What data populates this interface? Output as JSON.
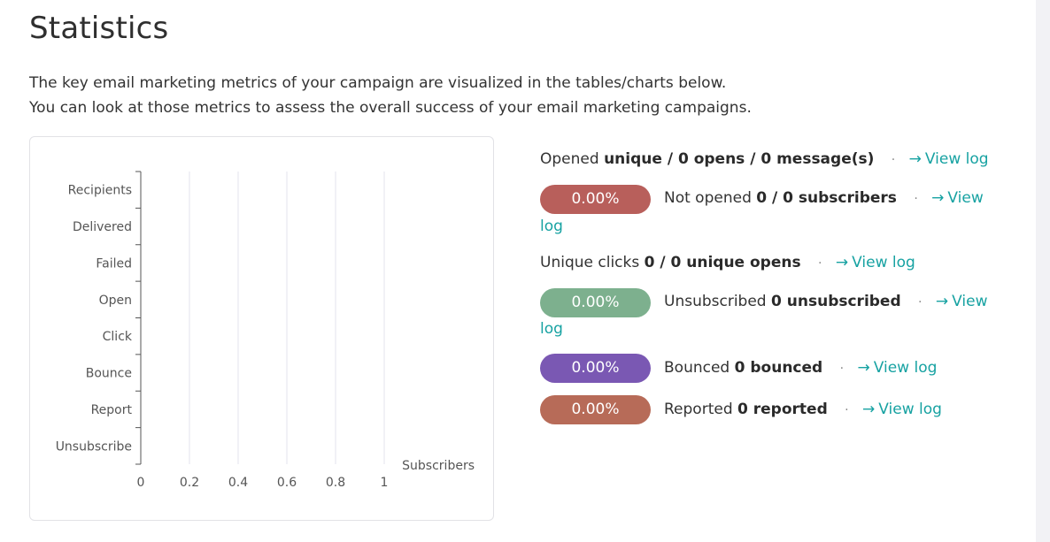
{
  "page": {
    "title": "Statistics",
    "description_line1": "The key email marketing metrics of your campaign are visualized in the tables/charts below.",
    "description_line2": "You can look at those metrics to assess the overall success of your email marketing campaigns."
  },
  "chart_data": {
    "type": "bar",
    "orientation": "horizontal",
    "categories": [
      "Recipients",
      "Delivered",
      "Failed",
      "Open",
      "Click",
      "Bounce",
      "Report",
      "Unsubscribe"
    ],
    "values": [
      0,
      0,
      0,
      0,
      0,
      0,
      0,
      0
    ],
    "xlabel": "Subscribers",
    "ylabel": "",
    "xlim": [
      0,
      1
    ],
    "x_ticks": [
      "0",
      "0.2",
      "0.4",
      "0.6",
      "0.8",
      "1"
    ],
    "grid": true
  },
  "metrics": {
    "opened": {
      "label": "Opened",
      "value": "unique / 0 opens / 0 message(s)",
      "dot": "·",
      "link": "View log"
    },
    "not_opened": {
      "percent": "0.00%",
      "color": "#b85f5b",
      "label": "Not opened",
      "value": "0 / 0 subscribers",
      "dot": "·",
      "link_part1": "View",
      "link_part2": "log"
    },
    "unique_clicks": {
      "label": "Unique clicks",
      "value": "0 / 0 unique opens",
      "dot": "·",
      "link": "View log"
    },
    "unsubscribed": {
      "percent": "0.00%",
      "color": "#7db08e",
      "label": "Unsubscribed",
      "value": "0 unsubscribed",
      "dot": "·",
      "link_part1": "View",
      "link_part2": "log"
    },
    "bounced": {
      "percent": "0.00%",
      "color": "#7a58b3",
      "label": "Bounced",
      "value": "0 bounced",
      "dot": "·",
      "link": "View log"
    },
    "reported": {
      "percent": "0.00%",
      "color": "#b76b58",
      "label": "Reported",
      "value": "0 reported",
      "dot": "·",
      "link": "View log"
    }
  },
  "icons": {
    "arrow": "arrow-right-icon"
  },
  "colors": {
    "link": "#17a2a2"
  }
}
